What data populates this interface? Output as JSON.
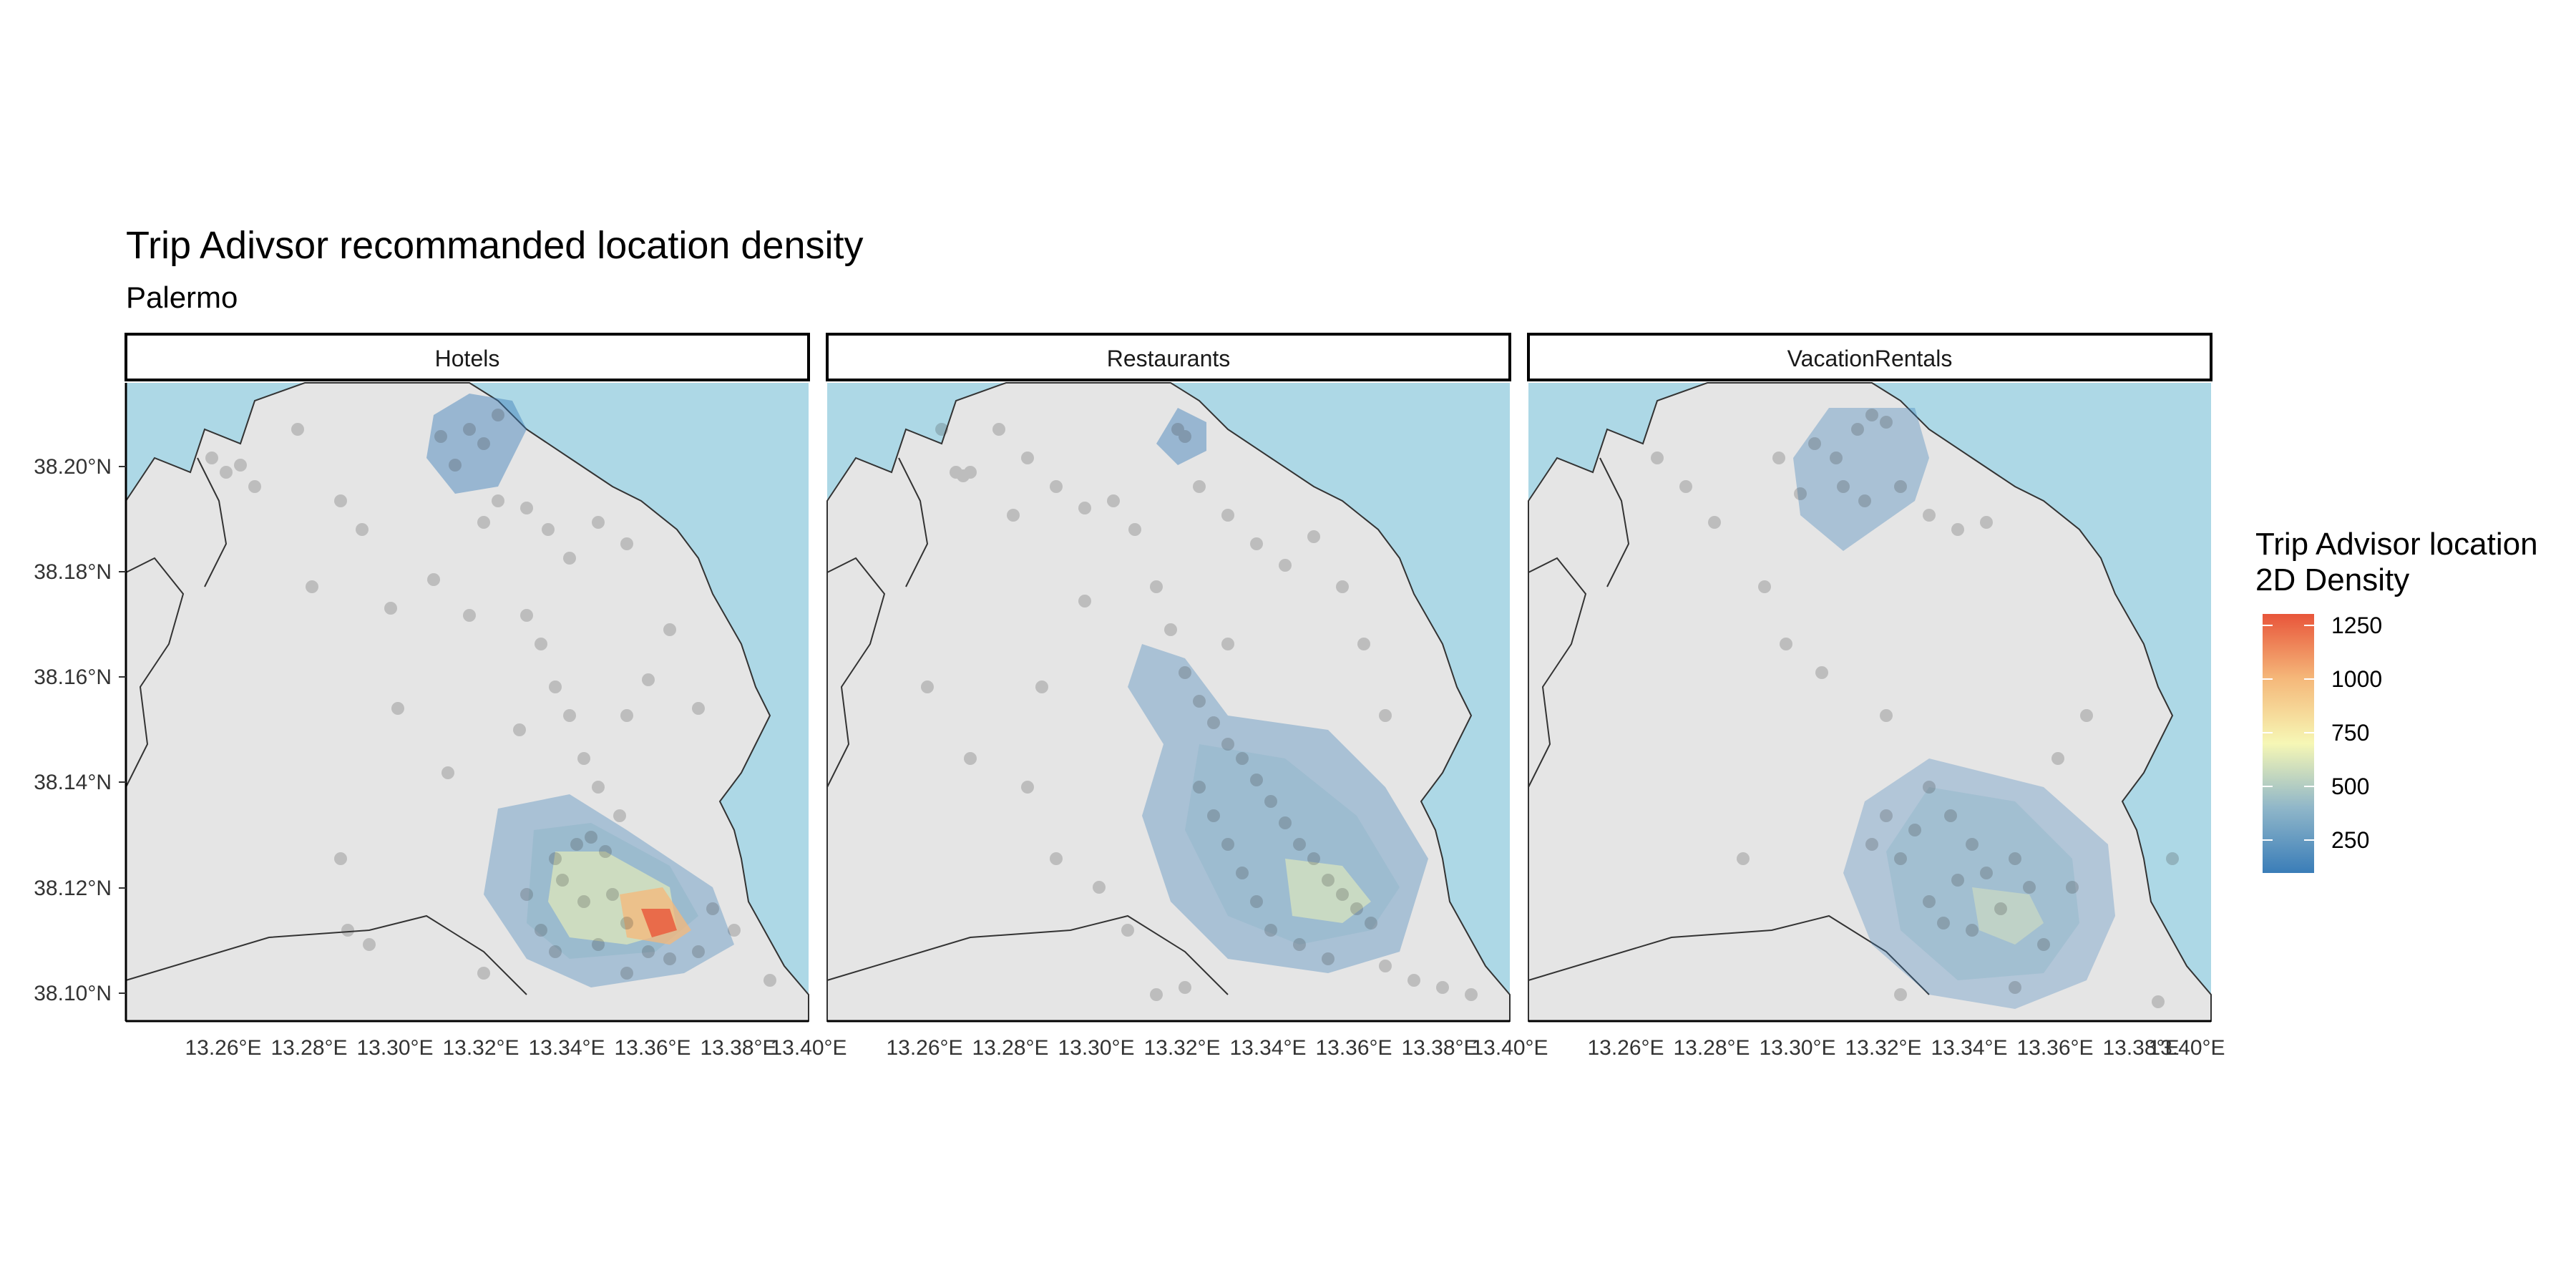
{
  "title": "Trip Adivsor recommanded location density",
  "subtitle": "Palermo",
  "panels": [
    {
      "name": "Hotels"
    },
    {
      "name": "Restaurants"
    },
    {
      "name": "VacationRentals"
    }
  ],
  "axes": {
    "lat_ticks": [
      "38.20°N",
      "38.18°N",
      "38.16°N",
      "38.14°N",
      "38.12°N",
      "38.10°N"
    ],
    "lon_ticks": [
      "13.26°E",
      "13.28°E",
      "13.30°E",
      "13.32°E",
      "13.34°E",
      "13.36°E",
      "13.38°E",
      "13.40°E"
    ]
  },
  "legend": {
    "title_line1": "Trip Advisor location",
    "title_line2": "2D Density",
    "labels": [
      "1250",
      "1000",
      "750",
      "500",
      "250"
    ]
  },
  "colors": {
    "land": "#e5e5e5",
    "sea": "#add8e6",
    "points": "#333333",
    "density_low": "#3a7db8",
    "density_mid": "#f6f7b5",
    "density_high": "#e8553a"
  }
}
